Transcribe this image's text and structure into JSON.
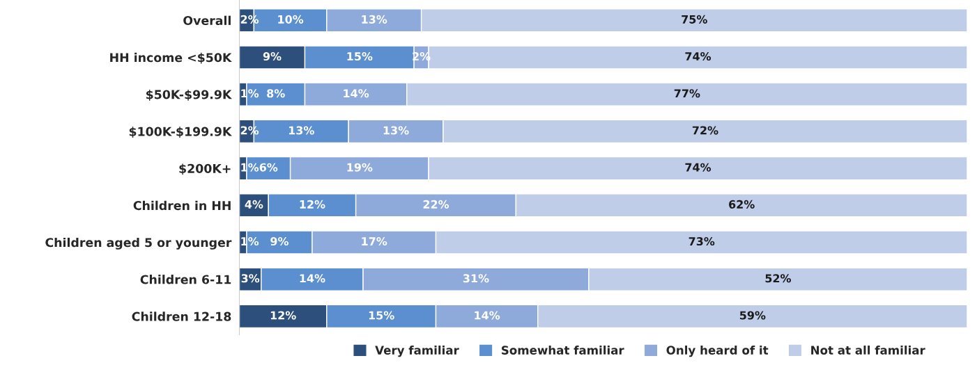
{
  "chart_data": {
    "type": "bar",
    "orientation": "horizontal",
    "stacked": true,
    "legend": "bottom",
    "grid": false,
    "tick_labels": "y",
    "categories": [
      "Overall",
      "HH income <$50K",
      "$50K-$99.9K",
      "$100K-$199.9K",
      "$200K+",
      "Children in HH",
      "Children aged 5 or younger",
      "Children 6-11",
      "Children 12-18"
    ],
    "series": [
      {
        "name": "Very familiar",
        "color": "#2c4f7c",
        "values": [
          2,
          9,
          1,
          2,
          1,
          4,
          1,
          3,
          12
        ],
        "value_labels": [
          "2%",
          "9%",
          "1%",
          "2%",
          "1%",
          "4%",
          "1%",
          "3%",
          "12%"
        ]
      },
      {
        "name": "Somewhat familiar",
        "color": "#5b8fd0",
        "values": [
          10,
          15,
          8,
          13,
          6,
          12,
          9,
          14,
          15
        ],
        "value_labels": [
          "10%",
          "15%",
          "8%",
          "13%",
          "6%",
          "12%",
          "9%",
          "14%",
          "15%"
        ]
      },
      {
        "name": "Only heard of it",
        "color": "#8eaadb",
        "values": [
          13,
          2,
          14,
          13,
          19,
          22,
          17,
          31,
          14
        ],
        "value_labels": [
          "13%",
          "2%",
          "14%",
          "13%",
          "19%",
          "22%",
          "17%",
          "31%",
          "14%"
        ]
      },
      {
        "name": "Not at all familiar",
        "color": "#bfcde8",
        "values": [
          75,
          74,
          77,
          72,
          74,
          62,
          73,
          52,
          59
        ],
        "value_labels": [
          "75%",
          "74%",
          "77%",
          "72%",
          "74%",
          "62%",
          "73%",
          "52%",
          "59%"
        ]
      }
    ]
  }
}
